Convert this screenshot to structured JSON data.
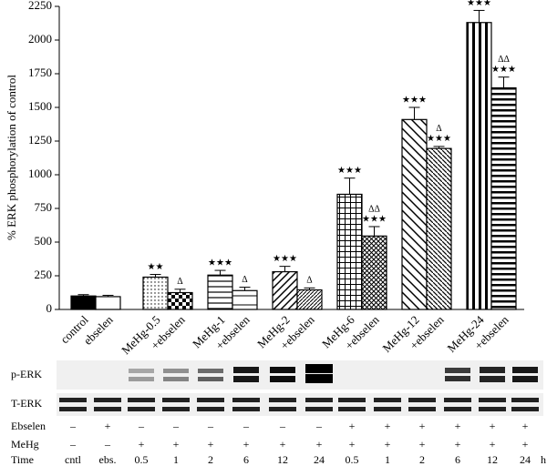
{
  "chart_data": {
    "type": "bar",
    "y_label": "% ERK phosphorylation of control",
    "categories": [
      "control",
      "ebselen",
      "MeHg-0.5",
      "+ebselen",
      "MeHg-1",
      "+ebselen",
      "MeHg-2",
      "+ebselen",
      "MeHg-6",
      "+ebselen",
      "MeHg-12",
      "+ebselen",
      "MeHg-24",
      "+ebselen"
    ],
    "values": [
      100,
      95,
      240,
      125,
      255,
      140,
      280,
      145,
      855,
      545,
      1410,
      1195,
      2130,
      1645
    ],
    "errors": [
      10,
      10,
      20,
      25,
      35,
      25,
      40,
      15,
      120,
      70,
      90,
      15,
      90,
      80
    ],
    "stars": [
      null,
      null,
      "★★",
      null,
      "★★★",
      null,
      "★★★",
      null,
      "★★★",
      "★★★",
      "★★★",
      "★★★",
      "★★★",
      "★★★"
    ],
    "deltas": [
      null,
      null,
      null,
      "Δ",
      null,
      "Δ",
      null,
      "Δ",
      null,
      "ΔΔ",
      null,
      "Δ",
      null,
      "ΔΔ"
    ],
    "patterns": [
      "solid",
      "open",
      "dots",
      "checker",
      "hlines",
      "hlines-sparse",
      "diag",
      "diag-dense",
      "grid",
      "xhatch",
      "backdiag",
      "backdiag-dense",
      "vlines",
      "hlines-dense"
    ],
    "color": "#000000",
    "ylim": [
      0,
      2250
    ],
    "yticks": [
      0,
      250,
      500,
      750,
      1000,
      1250,
      1500,
      1750,
      2000,
      2250
    ]
  },
  "blot": {
    "rows": [
      "p-ERK",
      "T-ERK"
    ],
    "conditions": [
      {
        "label": "Ebselen",
        "values": [
          "–",
          "+",
          "–",
          "–",
          "–",
          "–",
          "–",
          "–",
          "+",
          "+",
          "+",
          "+",
          "+",
          "+"
        ]
      },
      {
        "label": "MeHg",
        "values": [
          "–",
          "–",
          "+",
          "+",
          "+",
          "+",
          "+",
          "+",
          "+",
          "+",
          "+",
          "+",
          "+",
          "+"
        ]
      },
      {
        "label": "Time",
        "values": [
          "cntl",
          "ebs.",
          "0.5",
          "1",
          "2",
          "6",
          "12",
          "24",
          "0.5",
          "1",
          "2",
          "6",
          "12",
          "24"
        ]
      }
    ],
    "time_unit": "h"
  }
}
